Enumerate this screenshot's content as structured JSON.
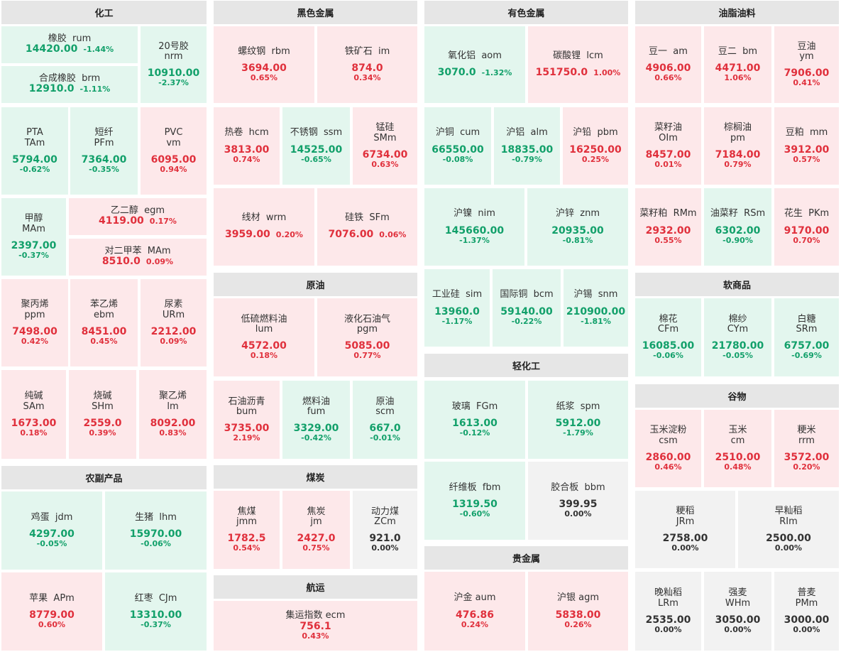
{
  "sections": {
    "chem": "化工",
    "ferrous": "黑色金属",
    "nonferrous": "有色金属",
    "oils": "油脂油料",
    "crude": "原油",
    "soft": "软商品",
    "agri": "农副产品",
    "coal": "煤炭",
    "light": "轻化工",
    "grains": "谷物",
    "precious": "贵金属",
    "shipping": "航运"
  },
  "tiles": {
    "rum": {
      "name": "橡胶  rum",
      "price": "14420.00",
      "pct": "-1.44%"
    },
    "brm": {
      "name": "合成橡胶  brm",
      "price": "12910.0",
      "pct": "-1.11%"
    },
    "nrm": {
      "name": "20号胶",
      "code": "nrm",
      "price": "10910.00",
      "pct": "-2.37%"
    },
    "tam": {
      "name": "PTA",
      "code": "TAm",
      "price": "5794.00",
      "pct": "-0.62%"
    },
    "pfm": {
      "name": "短纤",
      "code": "PFm",
      "price": "7364.00",
      "pct": "-0.35%"
    },
    "vm": {
      "name": "PVC",
      "code": "vm",
      "price": "6095.00",
      "pct": "0.94%"
    },
    "mam": {
      "name": "甲醇",
      "code": "MAm",
      "price": "2397.00",
      "pct": "-0.37%"
    },
    "egm": {
      "name": "乙二醇  egm",
      "price": "4119.00",
      "pct": "0.17%"
    },
    "pxm": {
      "name": "对二甲苯  MAm",
      "price": "8510.0",
      "pct": "0.09%"
    },
    "ppm": {
      "name": "聚丙烯",
      "code": "ppm",
      "price": "7498.00",
      "pct": "0.42%"
    },
    "ebm": {
      "name": "苯乙烯",
      "code": "ebm",
      "price": "8451.00",
      "pct": "0.45%"
    },
    "urm": {
      "name": "尿素",
      "code": "URm",
      "price": "2212.00",
      "pct": "0.09%"
    },
    "sam": {
      "name": "纯碱",
      "code": "SAm",
      "price": "1673.00",
      "pct": "0.18%"
    },
    "shm": {
      "name": "烧碱",
      "code": "SHm",
      "price": "2559.0",
      "pct": "0.39%"
    },
    "lm": {
      "name": "聚乙烯",
      "code": "lm",
      "price": "8092.00",
      "pct": "0.83%"
    },
    "jdm": {
      "name": "鸡蛋  jdm",
      "price": "4297.00",
      "pct": "-0.05%"
    },
    "lhm": {
      "name": "生猪  lhm",
      "price": "15970.00",
      "pct": "-0.06%"
    },
    "apm": {
      "name": "苹果  APm",
      "price": "8779.00",
      "pct": "0.60%"
    },
    "cjm": {
      "name": "红枣  CJm",
      "price": "13310.00",
      "pct": "-0.37%"
    },
    "rbm": {
      "name": "螺纹钢  rbm",
      "price": "3694.00",
      "pct": "0.65%"
    },
    "im": {
      "name": "铁矿石  im",
      "price": "874.0",
      "pct": "0.34%"
    },
    "hcm": {
      "name": "热卷  hcm",
      "price": "3813.00",
      "pct": "0.74%"
    },
    "ssm": {
      "name": "不锈钢  ssm",
      "price": "14525.00",
      "pct": "-0.65%"
    },
    "smm": {
      "name": "锰硅",
      "code": "SMm",
      "price": "6734.00",
      "pct": "0.63%"
    },
    "wrm": {
      "name": "线材  wrm",
      "price": "3959.00",
      "pct": "0.20%"
    },
    "sfm": {
      "name": "硅铁  SFm",
      "price": "7076.00",
      "pct": "0.06%"
    },
    "lum": {
      "name": "低硫燃料油",
      "code": "lum",
      "price": "4572.00",
      "pct": "0.18%"
    },
    "pgm": {
      "name": "液化石油气",
      "code": "pgm",
      "price": "5085.00",
      "pct": "0.77%"
    },
    "bum": {
      "name": "石油沥青",
      "code": "bum",
      "price": "3735.00",
      "pct": "2.19%"
    },
    "fum": {
      "name": "燃料油",
      "code": "fum",
      "price": "3329.00",
      "pct": "-0.42%"
    },
    "scm": {
      "name": "原油",
      "code": "scm",
      "price": "667.0",
      "pct": "-0.01%"
    },
    "jmm": {
      "name": "焦煤",
      "code": "jmm",
      "price": "1782.5",
      "pct": "0.54%"
    },
    "jm": {
      "name": "焦炭",
      "code": "jm",
      "price": "2427.0",
      "pct": "0.75%"
    },
    "zcm": {
      "name": "动力煤",
      "code": "ZCm",
      "price": "921.0",
      "pct": "0.00%"
    },
    "ecm": {
      "name": "集运指数 ecm",
      "price": "756.1",
      "pct": "0.43%"
    },
    "aom": {
      "name": "氧化铝  aom",
      "price": "3070.0",
      "pct": "-1.32%"
    },
    "lcm": {
      "name": "碳酸锂  lcm",
      "price": "151750.0",
      "pct": "1.00%"
    },
    "cum": {
      "name": "沪铜  cum",
      "price": "66550.00",
      "pct": "-0.08%"
    },
    "alm": {
      "name": "沪铝  alm",
      "price": "18835.00",
      "pct": "-0.79%"
    },
    "pbm": {
      "name": "沪铅  pbm",
      "price": "16250.00",
      "pct": "0.25%"
    },
    "nim": {
      "name": "沪镍  nim",
      "price": "145660.00",
      "pct": "-1.37%"
    },
    "znm": {
      "name": "沪锌  znm",
      "price": "20935.00",
      "pct": "-0.81%"
    },
    "sim": {
      "name": "工业硅  sim",
      "price": "13960.0",
      "pct": "-1.17%"
    },
    "bcm": {
      "name": "国际铜  bcm",
      "price": "59140.00",
      "pct": "-0.22%"
    },
    "snm": {
      "name": "沪锡  snm",
      "price": "210900.00",
      "pct": "-1.81%"
    },
    "fgm": {
      "name": "玻璃  FGm",
      "price": "1613.00",
      "pct": "-0.12%"
    },
    "spm": {
      "name": "纸浆  spm",
      "price": "5912.00",
      "pct": "-1.79%"
    },
    "fbm": {
      "name": "纤维板  fbm",
      "price": "1319.50",
      "pct": "-0.60%"
    },
    "bbm": {
      "name": "胶合板  bbm",
      "price": "399.95",
      "pct": "0.00%"
    },
    "aum": {
      "name": "沪金 aum",
      "price": "476.86",
      "pct": "0.24%"
    },
    "agm": {
      "name": "沪银 agm",
      "price": "5838.00",
      "pct": "0.26%"
    },
    "am": {
      "name": "豆一  am",
      "price": "4906.00",
      "pct": "0.66%"
    },
    "bm": {
      "name": "豆二  bm",
      "price": "4471.00",
      "pct": "1.06%"
    },
    "ym": {
      "name": "豆油",
      "code": "ym",
      "price": "7906.00",
      "pct": "0.41%"
    },
    "oim": {
      "name": "菜籽油",
      "code": "OIm",
      "price": "8457.00",
      "pct": "0.01%"
    },
    "pm": {
      "name": "棕榈油",
      "code": "pm",
      "price": "7184.00",
      "pct": "0.79%"
    },
    "mm": {
      "name": "豆粕  mm",
      "price": "3912.00",
      "pct": "0.57%"
    },
    "rmm": {
      "name": "菜籽粕  RMm",
      "price": "2932.00",
      "pct": "0.55%"
    },
    "rsm": {
      "name": "油菜籽  RSm",
      "price": "6302.00",
      "pct": "-0.90%"
    },
    "pkm": {
      "name": "花生  PKm",
      "price": "9170.00",
      "pct": "0.70%"
    },
    "cfm": {
      "name": "棉花",
      "code": "CFm",
      "price": "16085.00",
      "pct": "-0.06%"
    },
    "cym": {
      "name": "棉纱",
      "code": "CYm",
      "price": "21780.00",
      "pct": "-0.05%"
    },
    "srm": {
      "name": "白糖",
      "code": "SRm",
      "price": "6757.00",
      "pct": "-0.69%"
    },
    "csm": {
      "name": "玉米淀粉",
      "code": "csm",
      "price": "2860.00",
      "pct": "0.46%"
    },
    "cm": {
      "name": "玉米",
      "code": "cm",
      "price": "2510.00",
      "pct": "0.48%"
    },
    "rrm": {
      "name": "粳米",
      "code": "rrm",
      "price": "3572.00",
      "pct": "0.20%"
    },
    "jrm": {
      "name": "粳稻",
      "code": "JRm",
      "price": "2758.00",
      "pct": "0.00%"
    },
    "rim": {
      "name": "早籼稻",
      "code": "RIm",
      "price": "2500.00",
      "pct": "0.00%"
    },
    "lrm": {
      "name": "晚籼稻",
      "code": "LRm",
      "price": "2535.00",
      "pct": "0.00%"
    },
    "whm": {
      "name": "强麦",
      "code": "WHm",
      "price": "3050.00",
      "pct": "0.00%"
    },
    "pmm": {
      "name": "普麦",
      "code": "PMm",
      "price": "3000.00",
      "pct": "0.00%"
    }
  },
  "colors": {
    "up_bg": "#fde8ea",
    "down_bg": "#e3f6ee",
    "flat_bg": "#f2f2f2",
    "up": "#e0303c",
    "down": "#12a06a",
    "flat": "#333333",
    "header_bg": "#e6e6e6"
  }
}
